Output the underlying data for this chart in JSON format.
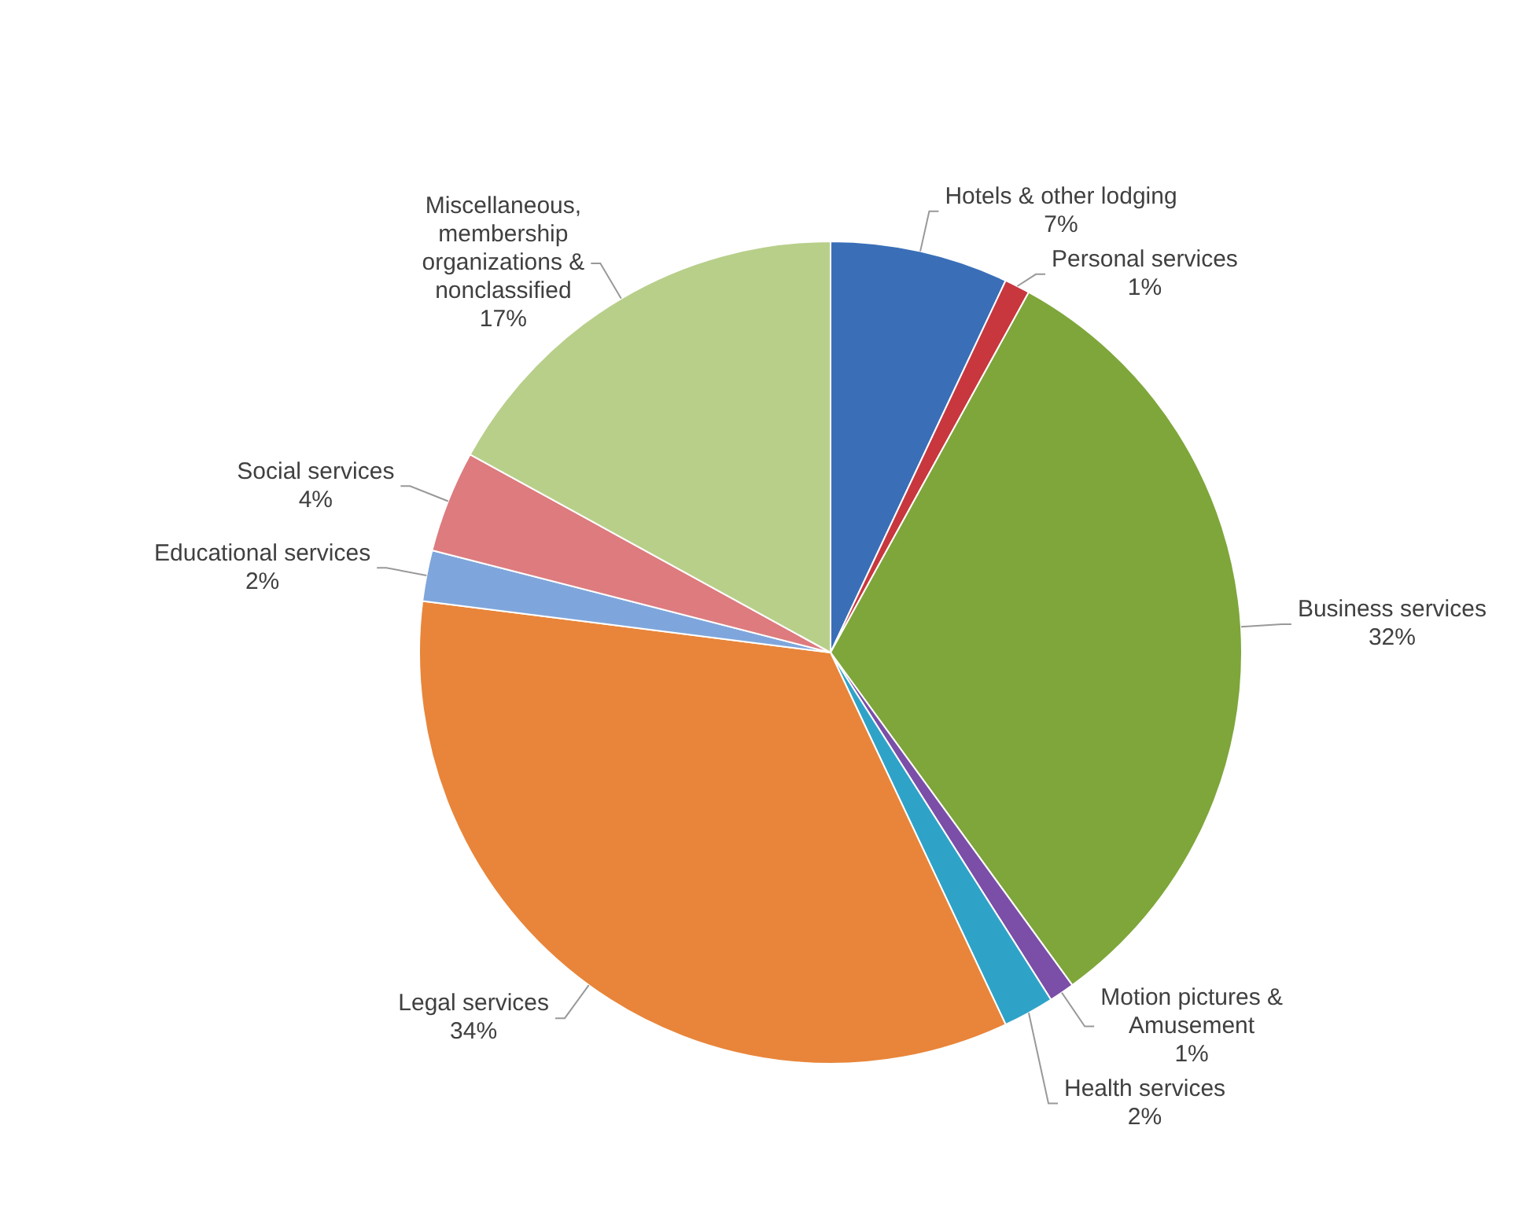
{
  "chart_data": {
    "type": "pie",
    "categories": [
      "Hotels & other lodging",
      "Personal services",
      "Business services",
      "Motion pictures & Amusement",
      "Health services",
      "Legal services",
      "Educational services",
      "Social services",
      "Miscellaneous, membership organizations & nonclassified"
    ],
    "values": [
      7,
      1,
      32,
      1,
      2,
      34,
      2,
      4,
      17
    ],
    "value_labels": [
      "7%",
      "1%",
      "32%",
      "1%",
      "2%",
      "34%",
      "2%",
      "4%",
      "17%"
    ],
    "colors": [
      "#3a6fb8",
      "#c8373e",
      "#7ea63a",
      "#7b4ea8",
      "#2fa3c7",
      "#e8853a",
      "#7fa6dc",
      "#dd7b7e",
      "#b8cf8a"
    ],
    "legend": false
  }
}
